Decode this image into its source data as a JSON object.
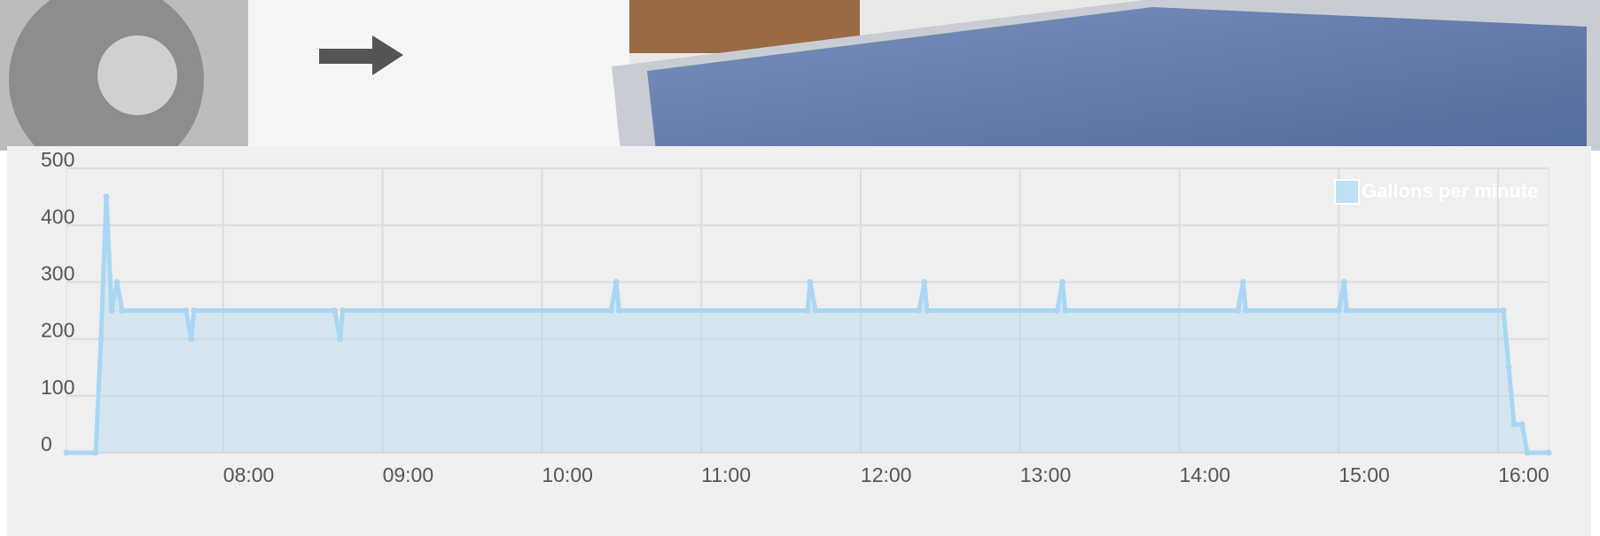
{
  "chart_data": {
    "type": "area",
    "series": [
      {
        "name": "Gallons per minute",
        "color": "#a9d6f3",
        "values": [
          0,
          0,
          200,
          450,
          250,
          300,
          250,
          250,
          200,
          250,
          250,
          200,
          250,
          250,
          300,
          250,
          250,
          300,
          250,
          250,
          300,
          250,
          250,
          300,
          250,
          250,
          300,
          250,
          250,
          300,
          250,
          250,
          150,
          50,
          50,
          0,
          0
        ]
      }
    ],
    "x": [
      421,
      432,
      434,
      436,
      438,
      440,
      442,
      466,
      468,
      469,
      522,
      524,
      525,
      626,
      628,
      629,
      700,
      701,
      703,
      742,
      744,
      745,
      794,
      796,
      797,
      862,
      864,
      865,
      900,
      902,
      903,
      962,
      964,
      966,
      969,
      971,
      979
    ],
    "xlim": [
      421,
      979
    ],
    "xticks": [
      {
        "value": 480,
        "label": "08:00"
      },
      {
        "value": 540,
        "label": "09:00"
      },
      {
        "value": 600,
        "label": "10:00"
      },
      {
        "value": 660,
        "label": "11:00"
      },
      {
        "value": 720,
        "label": "12:00"
      },
      {
        "value": 780,
        "label": "13:00"
      },
      {
        "value": 840,
        "label": "14:00"
      },
      {
        "value": 900,
        "label": "15:00"
      },
      {
        "value": 960,
        "label": "16:00"
      }
    ],
    "ylim": [
      0,
      500
    ],
    "yticks": [
      0,
      100,
      200,
      300,
      400,
      500
    ],
    "grid": true,
    "legend": "top-right"
  }
}
